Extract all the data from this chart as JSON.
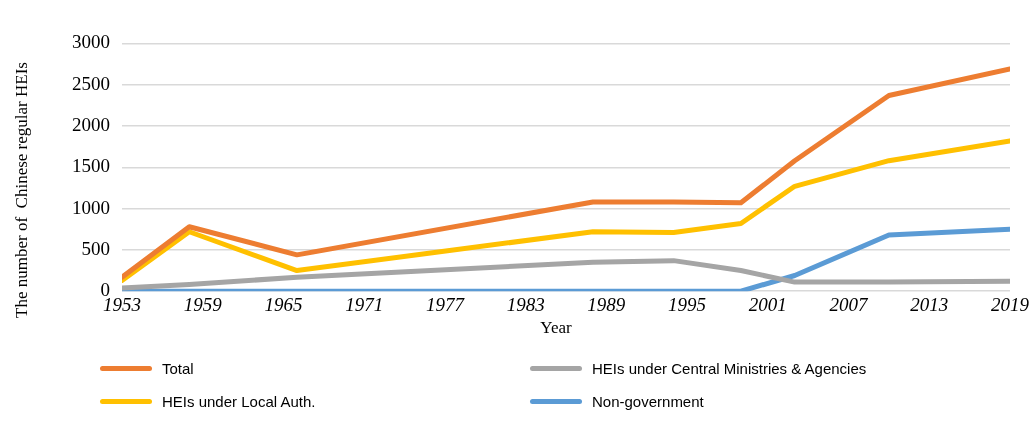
{
  "chart_data": {
    "type": "line",
    "xlabel": "Year",
    "ylabel": "The number of  Chinese regular HEIs",
    "x": [
      1953,
      1958,
      1966,
      1988,
      1994,
      1999,
      2003,
      2010,
      2019
    ],
    "series": [
      {
        "name": "Total",
        "color": "#ed7d31",
        "values": [
          170,
          780,
          440,
          1080,
          1080,
          1070,
          1580,
          2370,
          2690
        ]
      },
      {
        "name": "HEIs under Central Ministries & Agencies",
        "color": "#a5a5a5",
        "values": [
          40,
          80,
          170,
          350,
          370,
          250,
          110,
          110,
          120
        ]
      },
      {
        "name": "HEIs under Local Auth.",
        "color": "#ffc000",
        "values": [
          130,
          720,
          250,
          720,
          710,
          820,
          1270,
          1580,
          1820
        ]
      },
      {
        "name": "Non-government",
        "color": "#5b9bd5",
        "values": [
          0,
          0,
          0,
          0,
          0,
          0,
          190,
          680,
          750
        ]
      }
    ],
    "xlim": [
      1953,
      2019
    ],
    "xticks": [
      1953,
      1959,
      1965,
      1971,
      1977,
      1983,
      1989,
      1995,
      2001,
      2007,
      2013,
      2019
    ],
    "ylim": [
      0,
      3000
    ],
    "yticks": [
      0,
      500,
      1000,
      1500,
      2000,
      2500,
      3000
    ],
    "grid": "y",
    "legend": "bottom",
    "marker": "none",
    "line_style": "solid"
  }
}
